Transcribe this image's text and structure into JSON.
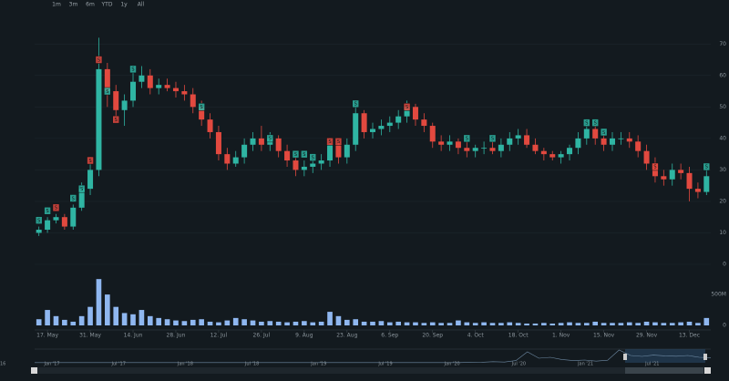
{
  "chart_data": {
    "type": "candlestick",
    "range_buttons": [
      "1m",
      "3m",
      "6m",
      "YTD",
      "1y",
      "All"
    ],
    "categories": [
      null,
      "17. May",
      null,
      null,
      null,
      null,
      "31. May",
      null,
      null,
      null,
      null,
      "14. Jun",
      null,
      null,
      null,
      null,
      "28. Jun",
      null,
      null,
      null,
      null,
      "12. Jul",
      null,
      null,
      null,
      null,
      "26. Jul",
      null,
      null,
      null,
      null,
      "9. Aug",
      null,
      null,
      null,
      null,
      "23. Aug",
      null,
      null,
      null,
      null,
      "6. Sep",
      null,
      null,
      null,
      null,
      "20. Sep",
      null,
      null,
      null,
      null,
      "4. Oct",
      null,
      null,
      null,
      null,
      "18. Oct",
      null,
      null,
      null,
      null,
      "1. Nov",
      null,
      null,
      null,
      null,
      "15. Nov",
      null,
      null,
      null,
      null,
      "29. Nov",
      null,
      null,
      null,
      null,
      "13. Dec",
      null,
      null
    ],
    "open": [
      10,
      11,
      14,
      15,
      12,
      18,
      24,
      30,
      62,
      55,
      49,
      52,
      58,
      60,
      56,
      57,
      56,
      55,
      54,
      50,
      46,
      42,
      35,
      32,
      34,
      38,
      40,
      38,
      40,
      36,
      33,
      30,
      31,
      32,
      33,
      38,
      34,
      38,
      48,
      42,
      43,
      44,
      45,
      47,
      50,
      46,
      44,
      39,
      38,
      39,
      37,
      36,
      37,
      37,
      36,
      38,
      40,
      41,
      38,
      36,
      35,
      34,
      35,
      37,
      40,
      43,
      40,
      38,
      40,
      40,
      39,
      36,
      32,
      28,
      27,
      30,
      29,
      24,
      23
    ],
    "high": [
      12,
      15,
      16,
      16,
      19,
      26,
      32,
      72,
      64,
      57,
      54,
      61,
      63,
      62,
      59,
      59,
      58,
      57,
      56,
      52,
      48,
      44,
      37,
      36,
      40,
      42,
      44,
      42,
      41,
      38,
      34,
      33,
      34,
      35,
      40,
      39,
      40,
      50,
      49,
      45,
      46,
      47,
      49,
      52,
      51,
      48,
      45,
      41,
      41,
      40,
      39,
      38,
      39,
      39,
      40,
      42,
      43,
      43,
      40,
      37,
      36,
      36,
      38,
      42,
      45,
      45,
      42,
      42,
      42,
      42,
      41,
      38,
      34,
      30,
      32,
      32,
      31,
      26,
      30
    ],
    "low": [
      9,
      10,
      13,
      11,
      11,
      17,
      22,
      28,
      50,
      47,
      44,
      50,
      56,
      54,
      54,
      55,
      53,
      52,
      48,
      44,
      40,
      33,
      30,
      31,
      32,
      36,
      36,
      36,
      34,
      31,
      28,
      28,
      29,
      30,
      31,
      32,
      32,
      36,
      40,
      40,
      41,
      42,
      43,
      45,
      44,
      42,
      37,
      36,
      36,
      35,
      34,
      34,
      35,
      35,
      34,
      36,
      38,
      37,
      35,
      33,
      33,
      32,
      33,
      35,
      38,
      38,
      36,
      36,
      38,
      37,
      34,
      30,
      26,
      25,
      25,
      27,
      20,
      21,
      22
    ],
    "close": [
      11,
      14,
      15,
      12,
      18,
      24,
      30,
      62,
      55,
      49,
      52,
      58,
      60,
      56,
      57,
      56,
      55,
      54,
      50,
      46,
      42,
      35,
      32,
      34,
      38,
      40,
      38,
      40,
      36,
      33,
      30,
      31,
      32,
      33,
      38,
      34,
      38,
      48,
      42,
      43,
      44,
      45,
      47,
      50,
      46,
      44,
      39,
      38,
      39,
      37,
      36,
      37,
      37,
      36,
      38,
      40,
      41,
      38,
      36,
      35,
      34,
      35,
      37,
      40,
      43,
      40,
      38,
      40,
      40,
      39,
      36,
      32,
      28,
      27,
      30,
      29,
      24,
      23,
      28
    ],
    "volume": [
      100,
      250,
      150,
      90,
      60,
      150,
      300,
      750,
      500,
      300,
      200,
      180,
      250,
      150,
      120,
      100,
      80,
      70,
      90,
      100,
      60,
      50,
      80,
      120,
      100,
      80,
      60,
      70,
      60,
      50,
      60,
      70,
      50,
      60,
      220,
      150,
      90,
      100,
      60,
      60,
      70,
      50,
      60,
      50,
      50,
      40,
      50,
      40,
      40,
      80,
      50,
      40,
      50,
      40,
      40,
      50,
      40,
      30,
      30,
      40,
      30,
      40,
      50,
      40,
      40,
      60,
      40,
      40,
      40,
      50,
      40,
      60,
      50,
      40,
      40,
      50,
      60,
      40,
      120
    ],
    "up_color": "#2fb5a3",
    "down_color": "#e2493f",
    "volume_color": "#8fb7f0",
    "ylim": [
      0,
      75
    ],
    "yticks": [
      0,
      10,
      20,
      30,
      40,
      50,
      60,
      70
    ],
    "y2lim": [
      0,
      900
    ],
    "y2ticks": [
      0,
      {
        "value": 500,
        "label": "500M"
      }
    ],
    "grid": true,
    "flags": [
      {
        "x": 0,
        "y": 14,
        "color": "#2fb5a3",
        "text": "S"
      },
      {
        "x": 1,
        "y": 17,
        "color": "#2fb5a3",
        "text": "S"
      },
      {
        "x": 2,
        "y": 18,
        "color": "#e2493f",
        "text": "S"
      },
      {
        "x": 4,
        "y": 21,
        "color": "#2fb5a3",
        "text": "S"
      },
      {
        "x": 5,
        "y": 24,
        "color": "#2fb5a3",
        "text": "S"
      },
      {
        "x": 6,
        "y": 33,
        "color": "#e2493f",
        "text": "S"
      },
      {
        "x": 7,
        "y": 65,
        "color": "#e2493f",
        "text": "S"
      },
      {
        "x": 8,
        "y": 55,
        "color": "#2fb5a3",
        "text": "S"
      },
      {
        "x": 9,
        "y": 46,
        "color": "#e2493f",
        "text": "S"
      },
      {
        "x": 11,
        "y": 62,
        "color": "#2fb5a3",
        "text": "S"
      },
      {
        "x": 19,
        "y": 50,
        "color": "#2fb5a3",
        "text": "S"
      },
      {
        "x": 27,
        "y": 40,
        "color": "#2fb5a3",
        "text": "S"
      },
      {
        "x": 30,
        "y": 35,
        "color": "#2fb5a3",
        "text": "S"
      },
      {
        "x": 31,
        "y": 35,
        "color": "#2fb5a3",
        "text": "S"
      },
      {
        "x": 32,
        "y": 34,
        "color": "#2fb5a3",
        "text": "S"
      },
      {
        "x": 34,
        "y": 39,
        "color": "#e2493f",
        "text": "S"
      },
      {
        "x": 35,
        "y": 39,
        "color": "#e2493f",
        "text": "S"
      },
      {
        "x": 37,
        "y": 51,
        "color": "#2fb5a3",
        "text": "S"
      },
      {
        "x": 43,
        "y": 50,
        "color": "#e2493f",
        "text": "S"
      },
      {
        "x": 50,
        "y": 40,
        "color": "#2fb5a3",
        "text": "S"
      },
      {
        "x": 53,
        "y": 40,
        "color": "#2fb5a3",
        "text": "S"
      },
      {
        "x": 64,
        "y": 45,
        "color": "#2fb5a3",
        "text": "S"
      },
      {
        "x": 65,
        "y": 45,
        "color": "#2fb5a3",
        "text": "S"
      },
      {
        "x": 66,
        "y": 42,
        "color": "#2fb5a3",
        "text": "S"
      },
      {
        "x": 72,
        "y": 31,
        "color": "#e2493f",
        "text": "S"
      },
      {
        "x": 78,
        "y": 31,
        "color": "#2fb5a3",
        "text": "S"
      }
    ],
    "navigator": {
      "left_label": "16",
      "labels": [
        "Jan '17",
        "Jul '17",
        "Jan '18",
        "Jul '18",
        "Jan '19",
        "Jul '19",
        "Jan '20",
        "Jul '20",
        "Jan '21",
        "Jul '21"
      ],
      "values": [
        1,
        1,
        1,
        1,
        1,
        1,
        1,
        1,
        1,
        1,
        1,
        1,
        1,
        1,
        1,
        1,
        1,
        1,
        1,
        1,
        1,
        1,
        1,
        1,
        1,
        1,
        1,
        1,
        1,
        1,
        1,
        1,
        1,
        1,
        1,
        1,
        1,
        1,
        2,
        3,
        6,
        4,
        12,
        60,
        25,
        30,
        18,
        12,
        15,
        9,
        14,
        70,
        40,
        35,
        42,
        38,
        36,
        40,
        30,
        28
      ],
      "ylim": [
        0,
        75
      ]
    }
  }
}
